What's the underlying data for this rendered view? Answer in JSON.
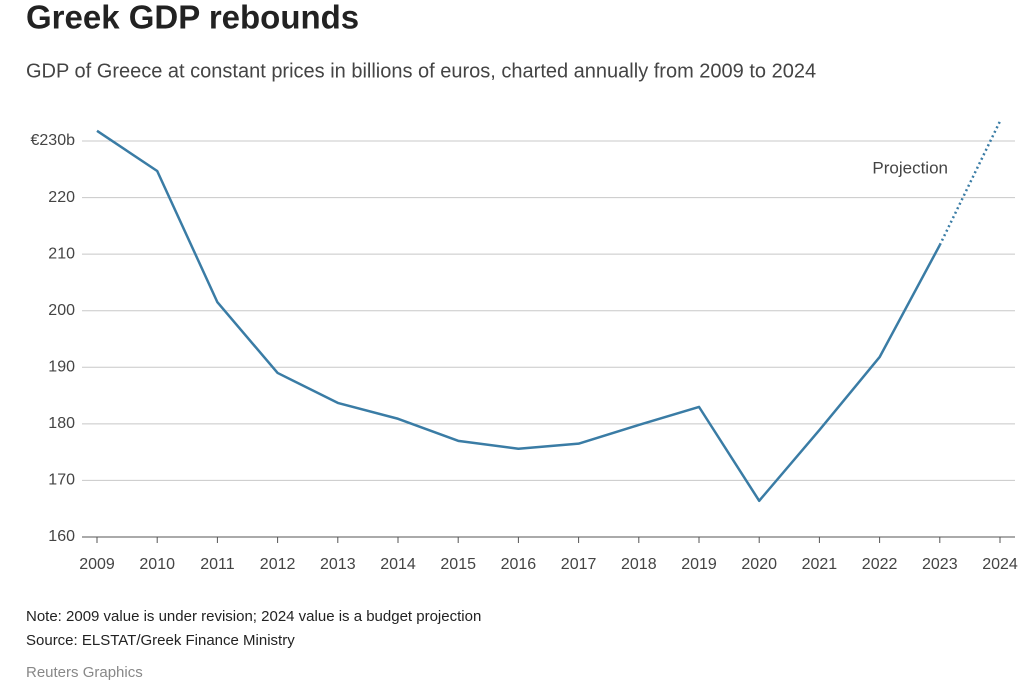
{
  "chart_data": {
    "type": "line",
    "title": "Greek GDP rebounds",
    "subtitle": "GDP of Greece at constant prices in billions of euros, charted annually from 2009 to 2024",
    "note": "Note: 2009 value is under revision; 2024 value is a budget projection",
    "source": "Source: ELSTAT/Greek Finance Ministry",
    "credit": "Reuters Graphics",
    "categories": [
      "2009",
      "2010",
      "2011",
      "2012",
      "2013",
      "2014",
      "2015",
      "2016",
      "2017",
      "2018",
      "2019",
      "2020",
      "2021",
      "2022",
      "2023",
      "2024"
    ],
    "series": [
      {
        "color": "#3a7ca5",
        "values": [
          231.8,
          224.7,
          201.5,
          189.0,
          183.7,
          180.9,
          177.0,
          175.6,
          176.5,
          179.8,
          183.0,
          166.4,
          178.9,
          191.8,
          211.6,
          null
        ]
      },
      {
        "name": "Projection",
        "color": "#3a7ca5",
        "style": "dotted",
        "values": [
          null,
          null,
          null,
          null,
          null,
          null,
          null,
          null,
          null,
          null,
          null,
          null,
          null,
          null,
          211.6,
          233.5
        ]
      }
    ],
    "ylim": [
      160,
      235
    ],
    "yticks": [
      160,
      170,
      180,
      190,
      200,
      210,
      220,
      {
        "value": 230,
        "label": "€230b"
      }
    ],
    "grid": true
  }
}
